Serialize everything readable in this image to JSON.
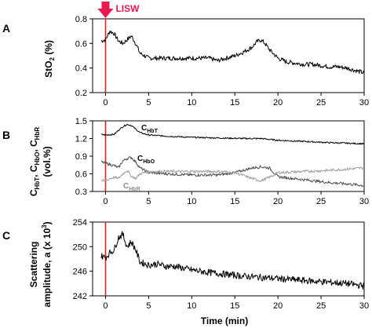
{
  "lisw": {
    "label": "LISW",
    "color": "#e8194f",
    "line_color": "#e02020",
    "time": 0
  },
  "xlabel": "Time (min)",
  "chart_data": [
    {
      "type": "line",
      "panel": "A",
      "ylabel_main": "StO",
      "ylabel_sub": "2",
      "ylabel_end": " (%)",
      "xlim": [
        -1.5,
        30
      ],
      "ylim": [
        0.2,
        0.8
      ],
      "xticks": [
        "0",
        "5",
        "10",
        "15",
        "20",
        "25",
        "30"
      ],
      "yticks": [
        "0.2",
        "0.4",
        "0.6",
        "0.8"
      ],
      "series": [
        {
          "color": "#000000",
          "x": [
            -0.5,
            0,
            0.5,
            1,
            1.5,
            2,
            2.5,
            3,
            3.5,
            4,
            5,
            6,
            7,
            8,
            9,
            10,
            11,
            12,
            13,
            14,
            15,
            16,
            17,
            17.5,
            18,
            18.5,
            19,
            20,
            21,
            22,
            23,
            24,
            25,
            26,
            27,
            28,
            29,
            30
          ],
          "y": [
            0.62,
            0.63,
            0.7,
            0.68,
            0.62,
            0.6,
            0.63,
            0.66,
            0.6,
            0.52,
            0.48,
            0.48,
            0.48,
            0.48,
            0.48,
            0.48,
            0.48,
            0.48,
            0.46,
            0.48,
            0.5,
            0.53,
            0.57,
            0.61,
            0.63,
            0.6,
            0.55,
            0.48,
            0.45,
            0.44,
            0.43,
            0.43,
            0.42,
            0.41,
            0.41,
            0.4,
            0.38,
            0.36
          ]
        }
      ]
    },
    {
      "type": "line",
      "panel": "B",
      "ylabel_lines": [
        "C",
        "(vol.%)"
      ],
      "ylabel_parts": [
        {
          "main": "C",
          "sub": "HbT"
        },
        {
          "main": ", C",
          "sub": "HbO"
        },
        {
          "main": ", C",
          "sub": "HbR"
        }
      ],
      "xlim": [
        -1.5,
        30
      ],
      "ylim": [
        0.3,
        1.5
      ],
      "xticks": [
        "0",
        "5",
        "10",
        "15",
        "20",
        "25",
        "30"
      ],
      "yticks": [
        "0.3",
        "0.6",
        "0.9",
        "1.2",
        "1.5"
      ],
      "series": [
        {
          "label_main": "C",
          "label_sub": "HbT",
          "color": "#000000",
          "x": [
            -0.5,
            0,
            1,
            1.5,
            2,
            2.5,
            3,
            4,
            5,
            7,
            10,
            13,
            16,
            18,
            20,
            23,
            26,
            28,
            30
          ],
          "y": [
            1.27,
            1.26,
            1.27,
            1.34,
            1.4,
            1.44,
            1.42,
            1.3,
            1.26,
            1.24,
            1.22,
            1.21,
            1.2,
            1.2,
            1.17,
            1.15,
            1.13,
            1.12,
            1.11
          ]
        },
        {
          "label_main": "C",
          "label_sub": "HbO",
          "color": "#505050",
          "x": [
            -0.5,
            0,
            0.5,
            1,
            1.5,
            2,
            2.5,
            3,
            3.5,
            4,
            5,
            7,
            10,
            13,
            15,
            17,
            18,
            19,
            20,
            23,
            26,
            28,
            30
          ],
          "y": [
            0.8,
            0.78,
            0.76,
            0.74,
            0.7,
            0.82,
            0.86,
            0.88,
            0.8,
            0.7,
            0.62,
            0.6,
            0.58,
            0.58,
            0.62,
            0.7,
            0.72,
            0.7,
            0.55,
            0.5,
            0.45,
            0.43,
            0.4
          ]
        },
        {
          "label_main": "C",
          "label_sub": "HbR",
          "color": "#a0a0a0",
          "x": [
            -0.5,
            0,
            0.5,
            1,
            1.5,
            2,
            2.5,
            3,
            3.5,
            4,
            5,
            7,
            10,
            13,
            15,
            17,
            18,
            19,
            20,
            23,
            26,
            28,
            30
          ],
          "y": [
            0.48,
            0.48,
            0.52,
            0.54,
            0.52,
            0.6,
            0.66,
            0.56,
            0.52,
            0.6,
            0.64,
            0.64,
            0.64,
            0.64,
            0.62,
            0.52,
            0.48,
            0.54,
            0.62,
            0.64,
            0.66,
            0.68,
            0.7
          ]
        }
      ]
    },
    {
      "type": "line",
      "panel": "C",
      "ylabel_lines": [
        "Scattering",
        "amplitude, a (x 10"
      ],
      "ylabel_sup": "3",
      "ylabel_close": ")",
      "xlim": [
        -1.5,
        30
      ],
      "ylim": [
        242,
        254
      ],
      "xticks": [
        "0",
        "5",
        "10",
        "15",
        "20",
        "25",
        "30"
      ],
      "yticks": [
        "242",
        "246",
        "250",
        "254"
      ],
      "series": [
        {
          "color": "#000000",
          "x": [
            -0.5,
            0,
            0.5,
            1,
            1.5,
            2,
            2.5,
            3,
            3.5,
            4,
            5,
            6,
            7,
            8,
            9,
            10,
            12,
            14,
            16,
            18,
            20,
            22,
            24,
            26,
            28,
            30
          ],
          "y": [
            248.5,
            248.2,
            249.0,
            249.5,
            251.5,
            252.0,
            250.0,
            250.8,
            249.5,
            247.5,
            247.0,
            247.2,
            246.8,
            246.8,
            246.5,
            246.2,
            245.8,
            245.5,
            245.2,
            245.0,
            244.8,
            244.6,
            244.4,
            244.2,
            244.0,
            243.6
          ]
        }
      ]
    }
  ]
}
